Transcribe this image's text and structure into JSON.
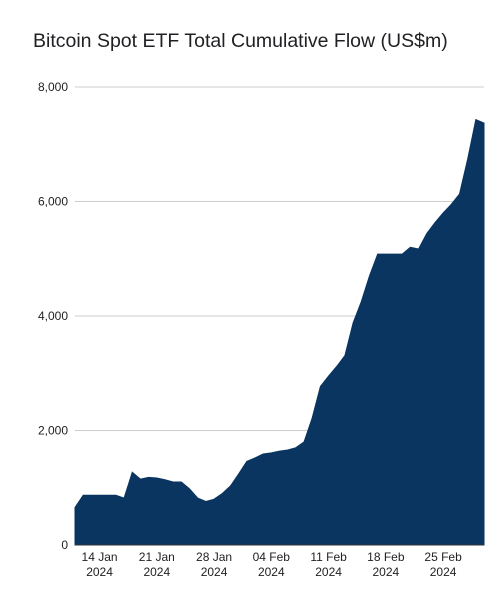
{
  "chart_data": {
    "type": "area",
    "title": "Bitcoin Spot ETF Total Cumulative Flow (US$m)",
    "xlabel": "",
    "ylabel": "",
    "ylim": [
      0,
      8000
    ],
    "y_ticks": [
      "0",
      "2,000",
      "4,000",
      "6,000",
      "8,000"
    ],
    "y_tick_values": [
      0,
      2000,
      4000,
      6000,
      8000
    ],
    "x_ticks": [
      {
        "date": "2024-01-14",
        "line1": "14 Jan",
        "line2": "2024"
      },
      {
        "date": "2024-01-21",
        "line1": "21 Jan",
        "line2": "2024"
      },
      {
        "date": "2024-01-28",
        "line1": "28 Jan",
        "line2": "2024"
      },
      {
        "date": "2024-02-04",
        "line1": "04 Feb",
        "line2": "2024"
      },
      {
        "date": "2024-02-11",
        "line1": "11 Feb",
        "line2": "2024"
      },
      {
        "date": "2024-02-18",
        "line1": "18 Feb",
        "line2": "2024"
      },
      {
        "date": "2024-02-25",
        "line1": "25 Feb",
        "line2": "2024"
      }
    ],
    "x_range": [
      "2024-01-11",
      "2024-03-01"
    ],
    "grid": true,
    "legend": "none",
    "fill_color": "#0a3560",
    "grid_color": "#cccccc",
    "series": [
      {
        "x": [
          "2024-01-11",
          "2024-01-12",
          "2024-01-13",
          "2024-01-14",
          "2024-01-15",
          "2024-01-16",
          "2024-01-17",
          "2024-01-18",
          "2024-01-19",
          "2024-01-20",
          "2024-01-21",
          "2024-01-22",
          "2024-01-23",
          "2024-01-24",
          "2024-01-25",
          "2024-01-26",
          "2024-01-27",
          "2024-01-28",
          "2024-01-29",
          "2024-01-30",
          "2024-01-31",
          "2024-02-01",
          "2024-02-02",
          "2024-02-03",
          "2024-02-04",
          "2024-02-05",
          "2024-02-06",
          "2024-02-07",
          "2024-02-08",
          "2024-02-09",
          "2024-02-10",
          "2024-02-11",
          "2024-02-12",
          "2024-02-13",
          "2024-02-14",
          "2024-02-15",
          "2024-02-16",
          "2024-02-17",
          "2024-02-18",
          "2024-02-19",
          "2024-02-20",
          "2024-02-21",
          "2024-02-22",
          "2024-02-23",
          "2024-02-24",
          "2024-02-25",
          "2024-02-26",
          "2024-02-27",
          "2024-02-28",
          "2024-02-29",
          "2024-03-01"
        ],
        "values": [
          655,
          870,
          870,
          870,
          870,
          870,
          820,
          1270,
          1150,
          1180,
          1170,
          1140,
          1100,
          1100,
          980,
          820,
          760,
          800,
          900,
          1030,
          1240,
          1460,
          1520,
          1590,
          1610,
          1640,
          1660,
          1700,
          1800,
          2220,
          2770,
          2950,
          3120,
          3310,
          3880,
          4250,
          4700,
          5080,
          5080,
          5080,
          5080,
          5200,
          5170,
          5440,
          5630,
          5800,
          5950,
          6130,
          6740,
          7430,
          7370
        ]
      }
    ]
  }
}
